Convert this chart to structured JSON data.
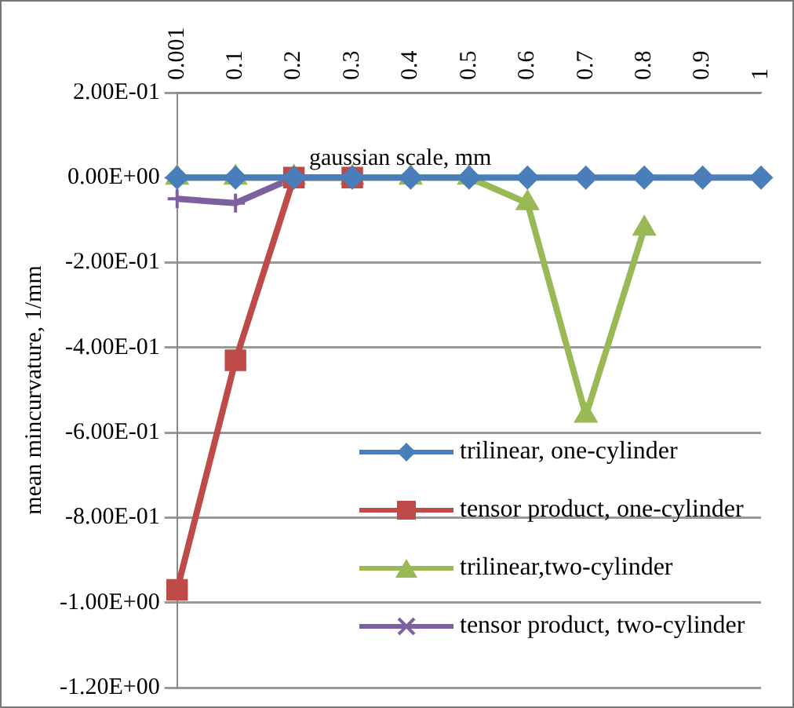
{
  "chart_data": {
    "type": "line",
    "xlabel": "gaussian scale, mm",
    "ylabel": "mean mincurvature, 1/mm",
    "categories": [
      "0.001",
      "0.1",
      "0.2",
      "0.3",
      "0.4",
      "0.5",
      "0.6",
      "0.7",
      "0.8",
      "0.9",
      "1"
    ],
    "series": [
      {
        "name": "trilinear, one-cylinder",
        "color": "#4a7ebb",
        "marker": "diamond",
        "values": [
          0,
          0,
          0,
          0,
          0,
          0,
          0,
          0,
          0,
          0,
          0
        ]
      },
      {
        "name": "tensor product, one-cylinder",
        "color": "#be4b48",
        "marker": "square",
        "values": [
          -0.97,
          -0.43,
          0,
          0,
          null,
          null,
          null,
          null,
          null,
          null,
          null
        ]
      },
      {
        "name": "trilinear,two-cylinder",
        "color": "#98b954",
        "marker": "triangle",
        "values": [
          0,
          0,
          0,
          0,
          0,
          0,
          -0.06,
          -0.56,
          -0.12,
          null,
          null
        ]
      },
      {
        "name": "tensor product, two-cylinder",
        "color": "#7d60a0",
        "marker": "cross",
        "values": [
          -0.05,
          -0.06,
          0,
          null,
          null,
          null,
          null,
          null,
          null,
          null,
          null
        ]
      }
    ],
    "ylim": [
      -1.2,
      0.2
    ],
    "yticks": [
      {
        "value": 0.2,
        "label": "2.00E-01"
      },
      {
        "value": 0,
        "label": "0.00E+00"
      },
      {
        "value": -0.2,
        "label": "-2.00E-01"
      },
      {
        "value": -0.4,
        "label": "-4.00E-01"
      },
      {
        "value": -0.6,
        "label": "-6.00E-01"
      },
      {
        "value": -0.8,
        "label": "-8.00E-01"
      },
      {
        "value": -1,
        "label": "-1.00E+00"
      },
      {
        "value": -1.2,
        "label": "-1.20E+00"
      }
    ],
    "grid": "y",
    "legend": "right",
    "line_style": "solid"
  }
}
